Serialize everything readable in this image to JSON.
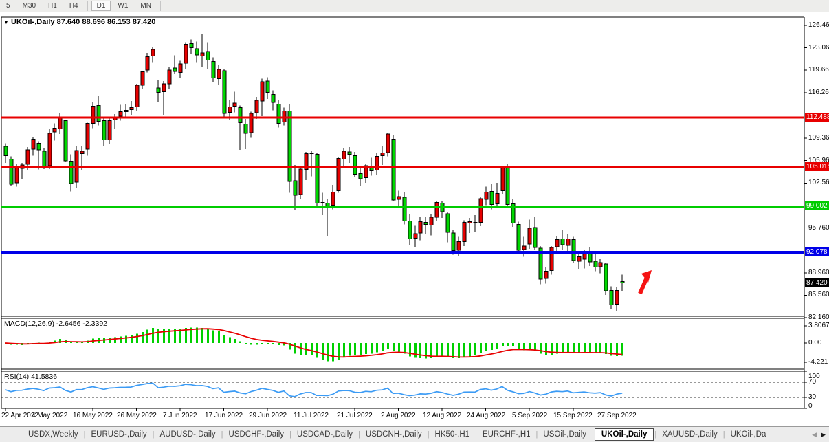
{
  "toolbar": {
    "timeframes": [
      {
        "label": "5",
        "active": false
      },
      {
        "label": "M30",
        "active": false
      },
      {
        "label": "H1",
        "active": false
      },
      {
        "label": "H4",
        "active": false
      },
      {
        "label": "D1",
        "active": true
      },
      {
        "label": "W1",
        "active": false
      },
      {
        "label": "MN",
        "active": false
      }
    ]
  },
  "chart": {
    "symbol_period": "UKOil-,Daily",
    "ohlc_line": "87.640 88.696 86.153 87.420",
    "dropdown_icon": "▼",
    "y_axis_ticks": [
      {
        "label": "126.460",
        "value": 126.46
      },
      {
        "label": "123.060",
        "value": 123.06
      },
      {
        "label": "119.660",
        "value": 119.66
      },
      {
        "label": "116.260",
        "value": 116.26
      },
      {
        "label": "109.360",
        "value": 109.36
      },
      {
        "label": "105.960",
        "value": 105.96
      },
      {
        "label": "102.560",
        "value": 102.56
      },
      {
        "label": "95.760",
        "value": 95.76
      },
      {
        "label": "88.960",
        "value": 88.96
      },
      {
        "label": "85.560",
        "value": 85.56
      },
      {
        "label": "82.160",
        "value": 82.16
      }
    ],
    "hlines": [
      {
        "label": "112.488",
        "value": 112.488,
        "color": "#e80000",
        "thickness": 3
      },
      {
        "label": "105.015",
        "value": 105.015,
        "color": "#e80000",
        "thickness": 3
      },
      {
        "label": "99.002",
        "value": 99.002,
        "color": "#00cc00",
        "thickness": 3
      },
      {
        "label": "92.078",
        "value": 92.078,
        "color": "#0000e8",
        "thickness": 4
      }
    ],
    "price_marker": {
      "label": "87.420",
      "value": 87.42,
      "color": "#000000"
    },
    "x_axis_dates": [
      "22 Apr 2022",
      "4 May 2022",
      "16 May 2022",
      "26 May 2022",
      "7 Jun 2022",
      "17 Jun 2022",
      "29 Jun 2022",
      "11 Jul 2022",
      "21 Jul 2022",
      "2 Aug 2022",
      "12 Aug 2022",
      "24 Aug 2022",
      "5 Sep 2022",
      "15 Sep 2022",
      "27 Sep 2022"
    ],
    "annotations": [
      {
        "shape": "up-arrow",
        "color": "#f51414"
      }
    ]
  },
  "indicators": {
    "macd": {
      "label": "MACD(12,26,9) -2.6456 -2.3392",
      "params": [
        12,
        26,
        9
      ],
      "value": -2.6456,
      "signal": -2.3392,
      "axis_ticks": [
        {
          "label": "3.8067",
          "value": 3.8067
        },
        {
          "label": "0.00",
          "value": 0
        },
        {
          "label": "-4.221",
          "value": -4.221
        }
      ],
      "hist_color": "#00d000",
      "signal_color": "#e80000"
    },
    "rsi": {
      "label": "RSI(14) 41.5836",
      "period": 14,
      "value": 41.5836,
      "axis_ticks": [
        {
          "label": "100",
          "value": 100
        },
        {
          "label": "70",
          "value": 70
        },
        {
          "label": "30",
          "value": 30
        },
        {
          "label": "0",
          "value": 0
        }
      ],
      "levels": [
        70,
        30
      ],
      "line_color": "#3b9bf5"
    }
  },
  "chart_data": {
    "type": "candlestick",
    "symbol": "UKOil-",
    "timeframe": "Daily",
    "title": "UKOil-,Daily",
    "current_bar": {
      "open": 87.64,
      "high": 88.696,
      "low": 86.153,
      "close": 87.42
    },
    "y_range": [
      82.16,
      126.46
    ],
    "up_color": "#e60000",
    "down_color": "#00d800",
    "note": "candles as [open,high,low,close]; up candles red, down candles green",
    "candles": [
      [
        108.1,
        108.6,
        105.6,
        106.7
      ],
      [
        106.2,
        106.6,
        102.1,
        102.4
      ],
      [
        102.6,
        105.5,
        102.0,
        105.0
      ],
      [
        104.8,
        105.6,
        103.2,
        105.3
      ],
      [
        105.4,
        108.0,
        104.5,
        107.6
      ],
      [
        107.7,
        109.5,
        106.7,
        109.2
      ],
      [
        108.6,
        108.9,
        104.6,
        107.6
      ],
      [
        107.4,
        107.9,
        104.7,
        105.0
      ],
      [
        105.2,
        110.8,
        104.7,
        110.1
      ],
      [
        110.3,
        111.6,
        109.0,
        110.9
      ],
      [
        110.8,
        113.1,
        110.0,
        112.4
      ],
      [
        112.0,
        112.2,
        105.7,
        105.9
      ],
      [
        105.9,
        106.9,
        101.3,
        102.5
      ],
      [
        102.7,
        108.1,
        101.8,
        107.5
      ],
      [
        107.0,
        108.1,
        104.5,
        107.4
      ],
      [
        107.7,
        111.7,
        106.7,
        111.6
      ],
      [
        111.6,
        114.9,
        110.9,
        114.2
      ],
      [
        114.3,
        115.7,
        111.3,
        111.9
      ],
      [
        112.0,
        112.4,
        108.2,
        109.1
      ],
      [
        109.1,
        112.5,
        108.5,
        112.0
      ],
      [
        112.1,
        113.0,
        110.8,
        112.5
      ],
      [
        112.7,
        114.4,
        112.0,
        113.4
      ],
      [
        113.4,
        114.6,
        112.4,
        113.6
      ],
      [
        113.7,
        115.0,
        112.9,
        114.0
      ],
      [
        114.1,
        117.6,
        113.5,
        117.4
      ],
      [
        117.4,
        119.6,
        116.8,
        119.4
      ],
      [
        119.7,
        122.3,
        119.3,
        121.7
      ],
      [
        121.8,
        123.2,
        120.9,
        122.8
      ],
      [
        117.0,
        118.1,
        114.8,
        116.3
      ],
      [
        116.4,
        118.0,
        112.8,
        117.6
      ],
      [
        117.6,
        120.1,
        116.8,
        119.7
      ],
      [
        120.0,
        121.9,
        119.1,
        119.5
      ],
      [
        119.3,
        121.1,
        118.5,
        120.6
      ],
      [
        120.7,
        123.9,
        119.8,
        123.6
      ],
      [
        123.7,
        124.3,
        122.2,
        123.1
      ],
      [
        122.9,
        124.0,
        120.9,
        122.0
      ],
      [
        121.8,
        125.2,
        120.2,
        122.3
      ],
      [
        122.5,
        123.9,
        119.9,
        121.2
      ],
      [
        121.0,
        121.6,
        117.8,
        118.5
      ],
      [
        118.4,
        120.5,
        117.4,
        119.8
      ],
      [
        119.6,
        119.9,
        112.6,
        113.1
      ],
      [
        113.3,
        115.1,
        112.2,
        114.1
      ],
      [
        114.2,
        116.4,
        113.3,
        114.7
      ],
      [
        114.0,
        114.3,
        107.6,
        111.7
      ],
      [
        111.5,
        112.3,
        107.7,
        110.1
      ],
      [
        110.2,
        113.4,
        109.4,
        113.1
      ],
      [
        113.2,
        115.6,
        112.3,
        115.1
      ],
      [
        115.0,
        118.4,
        112.7,
        117.9
      ],
      [
        118.0,
        118.6,
        115.3,
        116.3
      ],
      [
        116.0,
        116.6,
        113.6,
        114.8
      ],
      [
        114.5,
        115.2,
        111.0,
        111.6
      ],
      [
        111.8,
        114.0,
        111.3,
        113.5
      ],
      [
        113.5,
        114.6,
        101.1,
        102.8
      ],
      [
        102.9,
        105.3,
        98.5,
        100.7
      ],
      [
        100.8,
        105.1,
        100.2,
        104.7
      ],
      [
        104.6,
        107.3,
        103.0,
        107.0
      ],
      [
        107.0,
        107.5,
        103.6,
        107.1
      ],
      [
        106.9,
        107.2,
        98.9,
        99.5
      ],
      [
        99.6,
        101.1,
        97.7,
        99.6
      ],
      [
        99.5,
        100.1,
        94.5,
        99.1
      ],
      [
        99.2,
        102.3,
        98.6,
        101.2
      ],
      [
        101.4,
        106.5,
        101.1,
        106.3
      ],
      [
        106.2,
        107.9,
        105.1,
        107.4
      ],
      [
        107.3,
        108.0,
        105.6,
        106.9
      ],
      [
        106.7,
        107.3,
        103.4,
        103.9
      ],
      [
        104.0,
        105.2,
        102.2,
        103.2
      ],
      [
        103.4,
        105.5,
        102.6,
        105.2
      ],
      [
        105.0,
        106.4,
        103.7,
        104.4
      ],
      [
        104.5,
        107.2,
        103.8,
        106.6
      ],
      [
        106.7,
        108.1,
        105.3,
        107.1
      ],
      [
        107.2,
        110.2,
        106.6,
        110.0
      ],
      [
        109.2,
        109.8,
        99.8,
        100.0
      ],
      [
        100.1,
        101.4,
        99.0,
        100.5
      ],
      [
        100.4,
        101.2,
        96.3,
        96.8
      ],
      [
        96.8,
        97.8,
        93.2,
        94.1
      ],
      [
        94.2,
        96.1,
        92.8,
        94.9
      ],
      [
        95.0,
        97.4,
        93.9,
        96.7
      ],
      [
        96.6,
        97.4,
        94.9,
        96.3
      ],
      [
        96.2,
        97.9,
        94.6,
        97.4
      ],
      [
        97.4,
        99.9,
        96.8,
        99.6
      ],
      [
        99.5,
        99.9,
        97.3,
        98.2
      ],
      [
        97.9,
        98.2,
        93.6,
        95.1
      ],
      [
        95.0,
        95.4,
        91.7,
        92.3
      ],
      [
        92.4,
        94.4,
        91.5,
        93.7
      ],
      [
        93.7,
        96.9,
        93.0,
        96.6
      ],
      [
        96.5,
        97.3,
        95.0,
        96.7
      ],
      [
        96.6,
        97.7,
        95.1,
        96.5
      ],
      [
        96.6,
        100.5,
        96.0,
        100.2
      ],
      [
        100.1,
        102.0,
        99.2,
        101.2
      ],
      [
        101.3,
        102.5,
        98.6,
        99.3
      ],
      [
        99.4,
        102.6,
        98.8,
        101.0
      ],
      [
        101.4,
        105.1,
        100.9,
        105.0
      ],
      [
        104.9,
        105.5,
        98.9,
        99.3
      ],
      [
        99.4,
        100.1,
        95.9,
        96.5
      ],
      [
        96.3,
        96.7,
        91.9,
        92.4
      ],
      [
        92.5,
        94.4,
        91.4,
        93.0
      ],
      [
        93.3,
        97.0,
        92.6,
        95.7
      ],
      [
        95.8,
        97.5,
        92.4,
        92.8
      ],
      [
        92.7,
        93.0,
        87.2,
        88.0
      ],
      [
        88.1,
        89.9,
        87.3,
        89.2
      ],
      [
        89.3,
        93.0,
        88.7,
        92.8
      ],
      [
        92.9,
        94.5,
        92.1,
        94.0
      ],
      [
        94.1,
        95.5,
        92.5,
        93.2
      ],
      [
        93.1,
        94.8,
        92.0,
        94.1
      ],
      [
        94.0,
        94.4,
        90.4,
        90.8
      ],
      [
        90.7,
        92.0,
        89.5,
        91.4
      ],
      [
        91.0,
        92.5,
        89.6,
        92.0
      ],
      [
        92.1,
        92.9,
        90.0,
        90.6
      ],
      [
        90.7,
        91.8,
        89.2,
        89.8
      ],
      [
        89.9,
        91.0,
        88.9,
        90.5
      ],
      [
        90.3,
        90.4,
        85.6,
        86.2
      ],
      [
        86.3,
        86.9,
        83.5,
        84.1
      ],
      [
        84.2,
        86.8,
        83.2,
        86.3
      ],
      [
        87.64,
        88.696,
        86.153,
        87.42
      ]
    ]
  },
  "tabs": {
    "items": [
      {
        "label": "USDX,Weekly",
        "active": false
      },
      {
        "label": "EURUSD-,Daily",
        "active": false
      },
      {
        "label": "AUDUSD-,Daily",
        "active": false
      },
      {
        "label": "USDCHF-,Daily",
        "active": false
      },
      {
        "label": "USDCAD-,Daily",
        "active": false
      },
      {
        "label": "USDCNH-,Daily",
        "active": false
      },
      {
        "label": "HK50-,H1",
        "active": false
      },
      {
        "label": "EURCHF-,H1",
        "active": false
      },
      {
        "label": "USOil-,Daily",
        "active": false
      },
      {
        "label": "UKOil-,Daily",
        "active": true
      },
      {
        "label": "XAUUSD-,Daily",
        "active": false
      },
      {
        "label": "UKOil-,Da",
        "active": false
      }
    ],
    "scroll_left": "◀",
    "scroll_right": "▶"
  }
}
